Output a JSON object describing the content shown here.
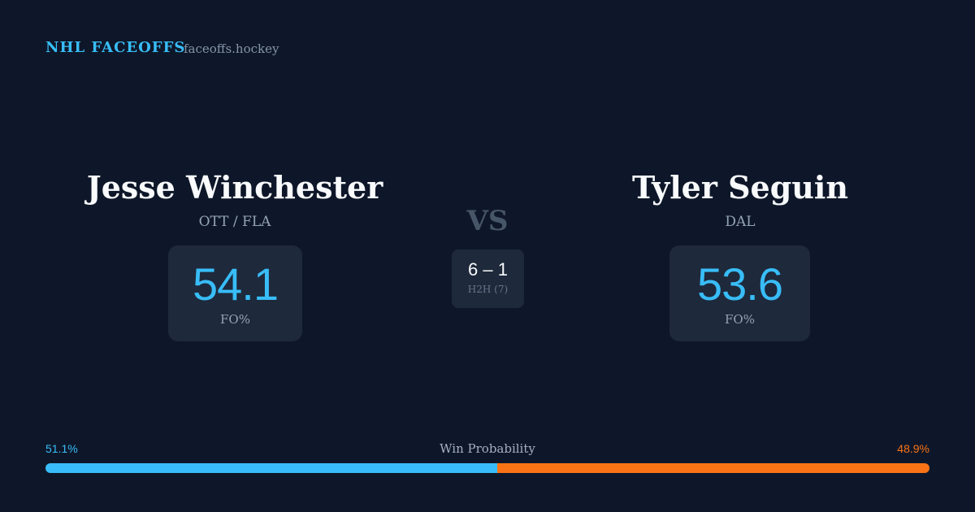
{
  "header": {
    "brand": "NHL FACEOFFS",
    "site": "faceoffs.hockey"
  },
  "players": [
    {
      "name": "Jesse Winchester",
      "team": "OTT / FLA",
      "fo_pct": 54.1,
      "fo_label": "FO%"
    },
    {
      "name": "Tyler Seguin",
      "team": "DAL",
      "fo_pct": 53.6,
      "fo_label": "FO%"
    }
  ],
  "versus": "VS",
  "h2h": {
    "score": "6 – 1",
    "label": "H2H (7)"
  },
  "win_probability": {
    "title": "Win Probability",
    "values": [
      51.1,
      48.9
    ],
    "value_labels": [
      "51.1%",
      "48.9%"
    ],
    "colors": [
      "#38bdf8",
      "#f97316"
    ]
  }
}
